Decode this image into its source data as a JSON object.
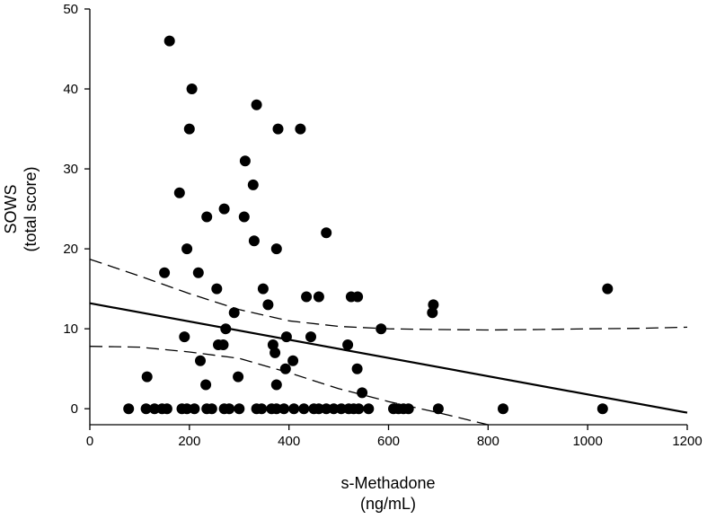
{
  "chart_data": {
    "type": "scatter",
    "xlabel": [
      "s-Methadone",
      "(ng/mL)"
    ],
    "ylabel": [
      "SOWS",
      "(total score)"
    ],
    "xlim": [
      0,
      1200
    ],
    "ylim": [
      -2,
      50
    ],
    "xticks": [
      0,
      200,
      400,
      600,
      800,
      1000,
      1200
    ],
    "yticks": [
      0,
      10,
      20,
      30,
      40,
      50
    ],
    "grid": false,
    "legend": "none",
    "points": [
      [
        78,
        0
      ],
      [
        113,
        0
      ],
      [
        130,
        0
      ],
      [
        145,
        0
      ],
      [
        155,
        0
      ],
      [
        185,
        0
      ],
      [
        195,
        0
      ],
      [
        210,
        0
      ],
      [
        235,
        0
      ],
      [
        245,
        0
      ],
      [
        270,
        0
      ],
      [
        280,
        0
      ],
      [
        300,
        0
      ],
      [
        335,
        0
      ],
      [
        345,
        0
      ],
      [
        365,
        0
      ],
      [
        375,
        0
      ],
      [
        390,
        0
      ],
      [
        410,
        0
      ],
      [
        430,
        0
      ],
      [
        450,
        0
      ],
      [
        460,
        0
      ],
      [
        475,
        0
      ],
      [
        490,
        0
      ],
      [
        505,
        0
      ],
      [
        520,
        0
      ],
      [
        530,
        0
      ],
      [
        540,
        0
      ],
      [
        560,
        0
      ],
      [
        610,
        0
      ],
      [
        620,
        0
      ],
      [
        630,
        0
      ],
      [
        640,
        0
      ],
      [
        700,
        0
      ],
      [
        830,
        0
      ],
      [
        1030,
        0
      ],
      [
        115,
        4
      ],
      [
        150,
        17
      ],
      [
        160,
        46
      ],
      [
        180,
        27
      ],
      [
        190,
        9
      ],
      [
        195,
        20
      ],
      [
        200,
        35
      ],
      [
        205,
        40
      ],
      [
        218,
        17
      ],
      [
        222,
        6
      ],
      [
        233,
        3
      ],
      [
        235,
        24
      ],
      [
        255,
        15
      ],
      [
        258,
        8
      ],
      [
        268,
        8
      ],
      [
        270,
        25
      ],
      [
        273,
        10
      ],
      [
        290,
        12
      ],
      [
        298,
        4
      ],
      [
        310,
        24
      ],
      [
        312,
        31
      ],
      [
        328,
        28
      ],
      [
        330,
        21
      ],
      [
        335,
        38
      ],
      [
        348,
        15
      ],
      [
        358,
        13
      ],
      [
        368,
        8
      ],
      [
        372,
        7
      ],
      [
        375,
        3
      ],
      [
        375,
        20
      ],
      [
        378,
        35
      ],
      [
        393,
        5
      ],
      [
        395,
        9
      ],
      [
        408,
        6
      ],
      [
        423,
        35
      ],
      [
        435,
        14
      ],
      [
        444,
        9
      ],
      [
        460,
        14
      ],
      [
        475,
        22
      ],
      [
        518,
        8
      ],
      [
        525,
        14
      ],
      [
        537,
        5
      ],
      [
        538,
        14
      ],
      [
        547,
        2
      ],
      [
        585,
        10
      ],
      [
        688,
        12
      ],
      [
        690,
        13
      ],
      [
        1040,
        15
      ]
    ],
    "regression": {
      "x": [
        0,
        1200
      ],
      "y": [
        13.2,
        -0.5
      ]
    },
    "ci_upper": {
      "x": [
        0,
        100,
        200,
        300,
        400,
        500,
        600,
        700,
        800,
        900,
        1000,
        1100,
        1200
      ],
      "y": [
        18.7,
        16.6,
        14.4,
        12.4,
        11.0,
        10.3,
        10.0,
        9.9,
        9.85,
        9.9,
        10.0,
        10.05,
        10.2
      ]
    },
    "ci_lower": {
      "x": [
        0,
        100,
        200,
        300,
        400,
        500,
        600,
        700,
        800
      ],
      "y": [
        7.8,
        7.7,
        7.1,
        6.3,
        4.5,
        2.5,
        0.9,
        -0.5,
        -2.0
      ]
    }
  }
}
